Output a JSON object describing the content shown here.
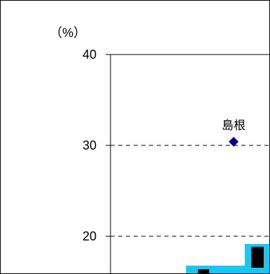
{
  "chart_data": {
    "type": "scatter",
    "title": "",
    "xlabel": "",
    "ylabel": "",
    "y_unit": "（%）",
    "ylim": [
      10,
      40
    ],
    "yticks": [
      20,
      30,
      40
    ],
    "grid": true,
    "points": [
      {
        "label": "島根",
        "y": 30.4,
        "color": "#00007f",
        "marker": "diamond"
      }
    ],
    "partial_marks_color": "#19c7ef"
  }
}
